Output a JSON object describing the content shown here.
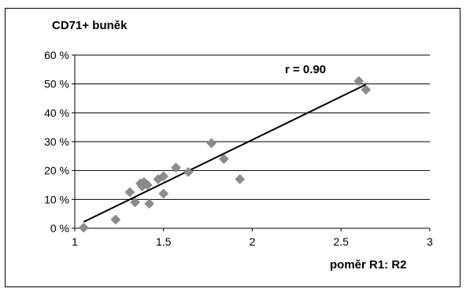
{
  "chart_data": {
    "type": "scatter",
    "title": "CD71+ buněk",
    "xlabel": "poměr R1: R2",
    "ylabel": "",
    "xlim": [
      1,
      3
    ],
    "ylim": [
      0,
      60
    ],
    "x_ticks": [
      1,
      1.5,
      2,
      2.5,
      3
    ],
    "x_tick_labels": [
      "1",
      "1.5",
      "2",
      "2.5",
      "3"
    ],
    "y_ticks": [
      0,
      10,
      20,
      30,
      40,
      50,
      60
    ],
    "y_tick_labels": [
      "0 %",
      "10 %",
      "20 %",
      "30 %",
      "40 %",
      "50 %",
      "60 %"
    ],
    "grid": "horizontal",
    "marker_color": "#8c8c8c",
    "line_color": "#000000",
    "points": [
      {
        "x": 1.05,
        "y": 0.2
      },
      {
        "x": 1.23,
        "y": 3
      },
      {
        "x": 1.31,
        "y": 12.5
      },
      {
        "x": 1.34,
        "y": 9
      },
      {
        "x": 1.37,
        "y": 15.5
      },
      {
        "x": 1.38,
        "y": 14.5
      },
      {
        "x": 1.39,
        "y": 16
      },
      {
        "x": 1.41,
        "y": 15
      },
      {
        "x": 1.42,
        "y": 8.5
      },
      {
        "x": 1.47,
        "y": 17
      },
      {
        "x": 1.5,
        "y": 18
      },
      {
        "x": 1.5,
        "y": 12
      },
      {
        "x": 1.57,
        "y": 21
      },
      {
        "x": 1.64,
        "y": 19.5
      },
      {
        "x": 1.77,
        "y": 29.5
      },
      {
        "x": 1.84,
        "y": 24
      },
      {
        "x": 1.93,
        "y": 17
      },
      {
        "x": 2.6,
        "y": 51
      },
      {
        "x": 2.64,
        "y": 48
      }
    ],
    "trendline": {
      "x": [
        1.05,
        2.64
      ],
      "y": [
        2.2,
        49.8
      ]
    },
    "annotation": "r = 0.90"
  }
}
